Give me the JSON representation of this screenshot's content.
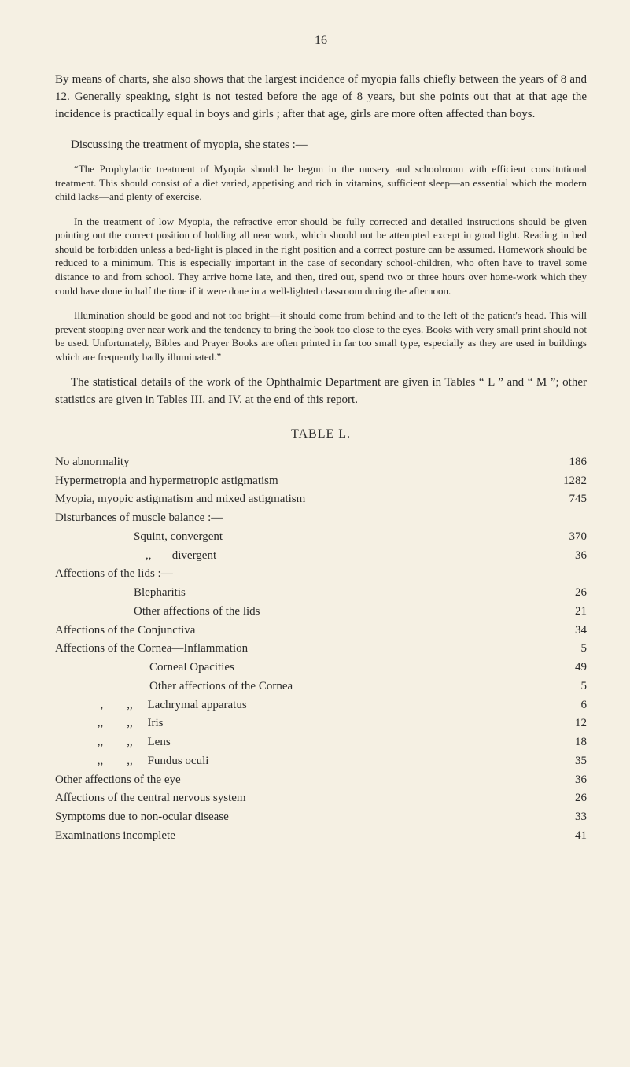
{
  "page_number": "16",
  "para1": "By means of charts, she also shows that the largest incidence of myopia falls chiefly between the years of 8 and 12. Generally speaking, sight is not tested before the age of 8 years, but she points out that at that age the incidence is practically equal in boys and girls ; after that age, girls are more often affected than boys.",
  "discussing": "Discussing the treatment of myopia, she states :—",
  "quote1": "“The Prophylactic treatment of Myopia should be begun in the nursery and schoolroom with efficient constitutional treatment. This should consist of a diet varied, appetising and rich in vitamins, sufficient sleep—an essential which the modern child lacks—and plenty of exercise.",
  "quote2": "In the treatment of low Myopia, the refractive error should be fully corrected and detailed instructions should be given pointing out the correct position of holding all near work, which should not be attempted except in good light. Reading in bed should be forbidden unless a bed-light is placed in the right position and a correct posture can be assumed. Homework should be reduced to a minimum. This is especially important in the case of secondary school-children, who often have to travel some distance to and from school. They arrive home late, and then, tired out, spend two or three hours over home-work which they could have done in half the time if it were done in a well-lighted classroom during the afternoon.",
  "quote3": "Illumination should be good and not too bright—it should come from behind and to the left of the patient's head. This will prevent stooping over near work and the tendency to bring the book too close to the eyes. Books with very small print should not be used. Unfortunately, Bibles and Prayer Books are often printed in far too small type, especially as they are used in buildings which are frequently badly illuminated.”",
  "stat_para": "The statistical details of the work of the Ophthalmic Department are given in Tables “ L ” and “ M ”; other statistics are given in Tables III. and IV. at the end of this report.",
  "table_title": "TABLE   L.",
  "rows": [
    {
      "label": "No abnormality",
      "value": "186",
      "indent": "indent-0"
    },
    {
      "label": "Hypermetropia and hypermetropic astigmatism",
      "value": "1282",
      "indent": "indent-0"
    },
    {
      "label": "Myopia, myopic astigmatism and mixed astigmatism",
      "value": "745",
      "indent": "indent-0"
    },
    {
      "label": "Disturbances of muscle balance :—",
      "value": "",
      "indent": "indent-0",
      "nodots": true
    },
    {
      "label": "Squint, convergent",
      "value": "370",
      "indent": "indent-1"
    },
    {
      "label": "    ,,       divergent",
      "value": "36",
      "indent": "indent-1"
    },
    {
      "label": "Affections of the lids :—",
      "value": "",
      "indent": "indent-0",
      "nodots": true
    },
    {
      "label": "Blepharitis",
      "value": "26",
      "indent": "indent-1"
    },
    {
      "label": "Other affections of the lids",
      "value": "21",
      "indent": "indent-1"
    },
    {
      "label": "Affections of the Conjunctiva",
      "value": "34",
      "indent": "indent-0"
    },
    {
      "label": "Affections of the Cornea—Inflammation",
      "value": "5",
      "indent": "indent-0"
    },
    {
      "label": "Corneal Opacities",
      "value": "49",
      "indent": "indent-2"
    },
    {
      "label": "Other affections of the Cornea",
      "value": "5",
      "indent": "indent-2"
    },
    {
      "label": "  ,        ,,     Lachrymal apparatus",
      "value": "6",
      "indent": "indent-q"
    },
    {
      "label": " ,,        ,,     Iris",
      "value": "12",
      "indent": "indent-q"
    },
    {
      "label": " ,,        ,,     Lens",
      "value": "18",
      "indent": "indent-q"
    },
    {
      "label": " ,,        ,,     Fundus oculi",
      "value": "35",
      "indent": "indent-q"
    },
    {
      "label": "Other affections of the eye",
      "value": "36",
      "indent": "indent-0"
    },
    {
      "label": "Affections of the central nervous system",
      "value": "26",
      "indent": "indent-0"
    },
    {
      "label": "Symptoms due to non-ocular disease",
      "value": "33",
      "indent": "indent-0"
    },
    {
      "label": "Examinations incomplete",
      "value": "41",
      "indent": "indent-0"
    }
  ]
}
